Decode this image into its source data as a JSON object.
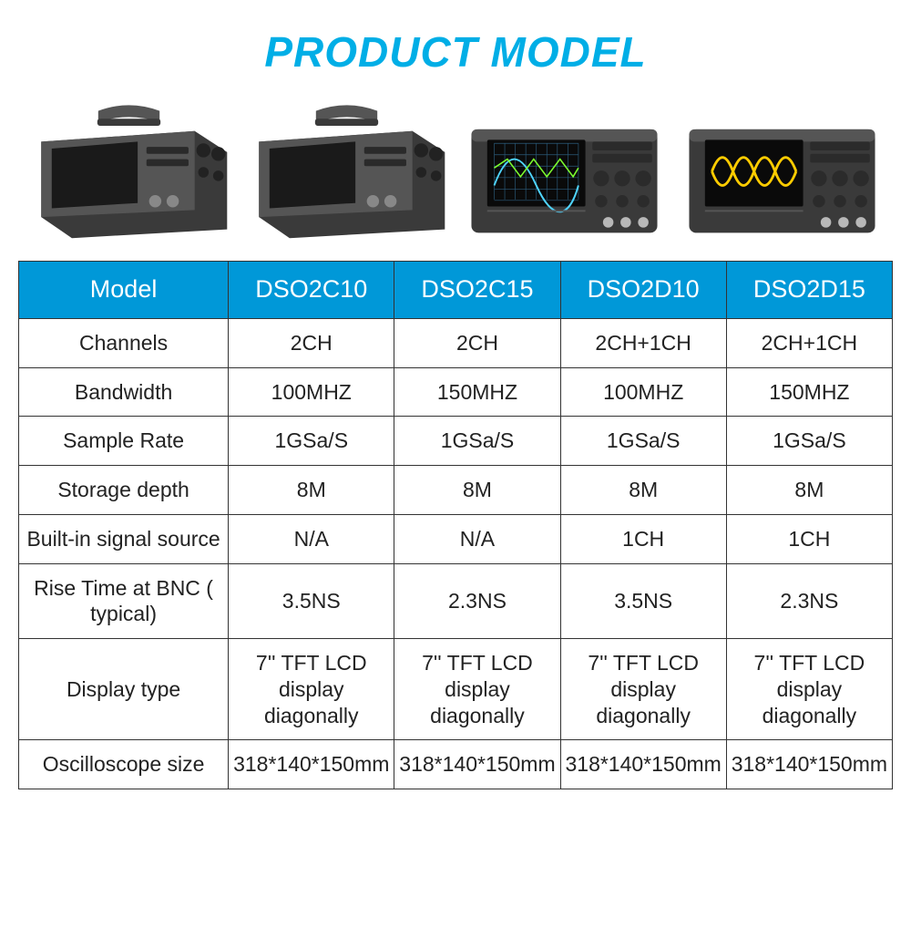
{
  "title": "PRODUCT MODEL",
  "colors": {
    "title": "#00aee6",
    "header_bg": "#0098d8",
    "header_text": "#ffffff",
    "border": "#333333",
    "cell_text": "#222222",
    "bg": "#ffffff",
    "scope_body": "#3a3a3a",
    "scope_body_light": "#555555",
    "scope_screen_off": "#1a1a1a",
    "scope_screen_on": "#0a0a0a",
    "scope_wave_grid": "#2b5b7a",
    "scope_wave_yellow": "#ffcc00",
    "scope_wave_green": "#7cff2e",
    "scope_wave_cyan": "#4fd5ff"
  },
  "table": {
    "columns": [
      "Model",
      "DSO2C10",
      "DSO2C15",
      "DSO2D10",
      "DSO2D15"
    ],
    "rows": [
      {
        "label": "Channels",
        "cells": [
          "2CH",
          "2CH",
          "2CH+1CH",
          "2CH+1CH"
        ]
      },
      {
        "label": "Bandwidth",
        "cells": [
          "100MHZ",
          "150MHZ",
          "100MHZ",
          "150MHZ"
        ]
      },
      {
        "label": "Sample Rate",
        "cells": [
          "1GSa/S",
          "1GSa/S",
          "1GSa/S",
          "1GSa/S"
        ]
      },
      {
        "label": "Storage depth",
        "cells": [
          "8M",
          "8M",
          "8M",
          "8M"
        ]
      },
      {
        "label": "Built-in signal source",
        "cells": [
          "N/A",
          "N/A",
          "1CH",
          "1CH"
        ]
      },
      {
        "label": "Rise Time at BNC ( typical)",
        "cells": [
          "3.5NS",
          "2.3NS",
          "3.5NS",
          "2.3NS"
        ]
      },
      {
        "label": "Display type",
        "cells": [
          "7'' TFT LCD display diagonally",
          "7'' TFT LCD display diagonally",
          "7'' TFT LCD display diagonally",
          "7'' TFT LCD display diagonally"
        ]
      },
      {
        "label": "Oscilloscope size",
        "cells": [
          "318*140*150mm",
          "318*140*150mm",
          "318*140*150mm",
          "318*140*150mm"
        ],
        "small": true
      }
    ]
  },
  "images": [
    {
      "variant": "angled_off"
    },
    {
      "variant": "angled_off"
    },
    {
      "variant": "front_grid"
    },
    {
      "variant": "front_wave"
    }
  ]
}
